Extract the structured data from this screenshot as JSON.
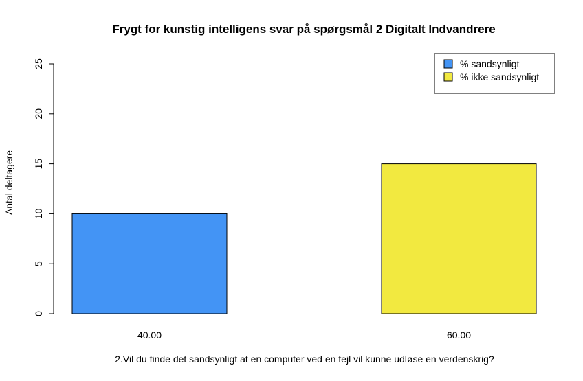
{
  "chart_data": {
    "type": "bar",
    "title": "Frygt for kunstig intelligens svar på spørgsmål 2 Digitalt Indvandrere",
    "xlabel": "2.Vil du finde det sandsynligt at en computer ved en fejl vil kunne udløse en verdenskrig?",
    "ylabel": "Antal deltagere",
    "ylim": [
      0,
      25
    ],
    "yticks": [
      0,
      5,
      10,
      15,
      20,
      25
    ],
    "categories": [
      "40.00",
      "60.00"
    ],
    "values": [
      10,
      15
    ],
    "bar_colors": [
      "#4394f5",
      "#f2e940"
    ],
    "legend": {
      "position": "top-right",
      "entries": [
        {
          "label": "% sandsynligt",
          "color": "#4394f5"
        },
        {
          "label": "% ikke sandsynligt",
          "color": "#f2e940"
        }
      ]
    },
    "grid": false
  }
}
